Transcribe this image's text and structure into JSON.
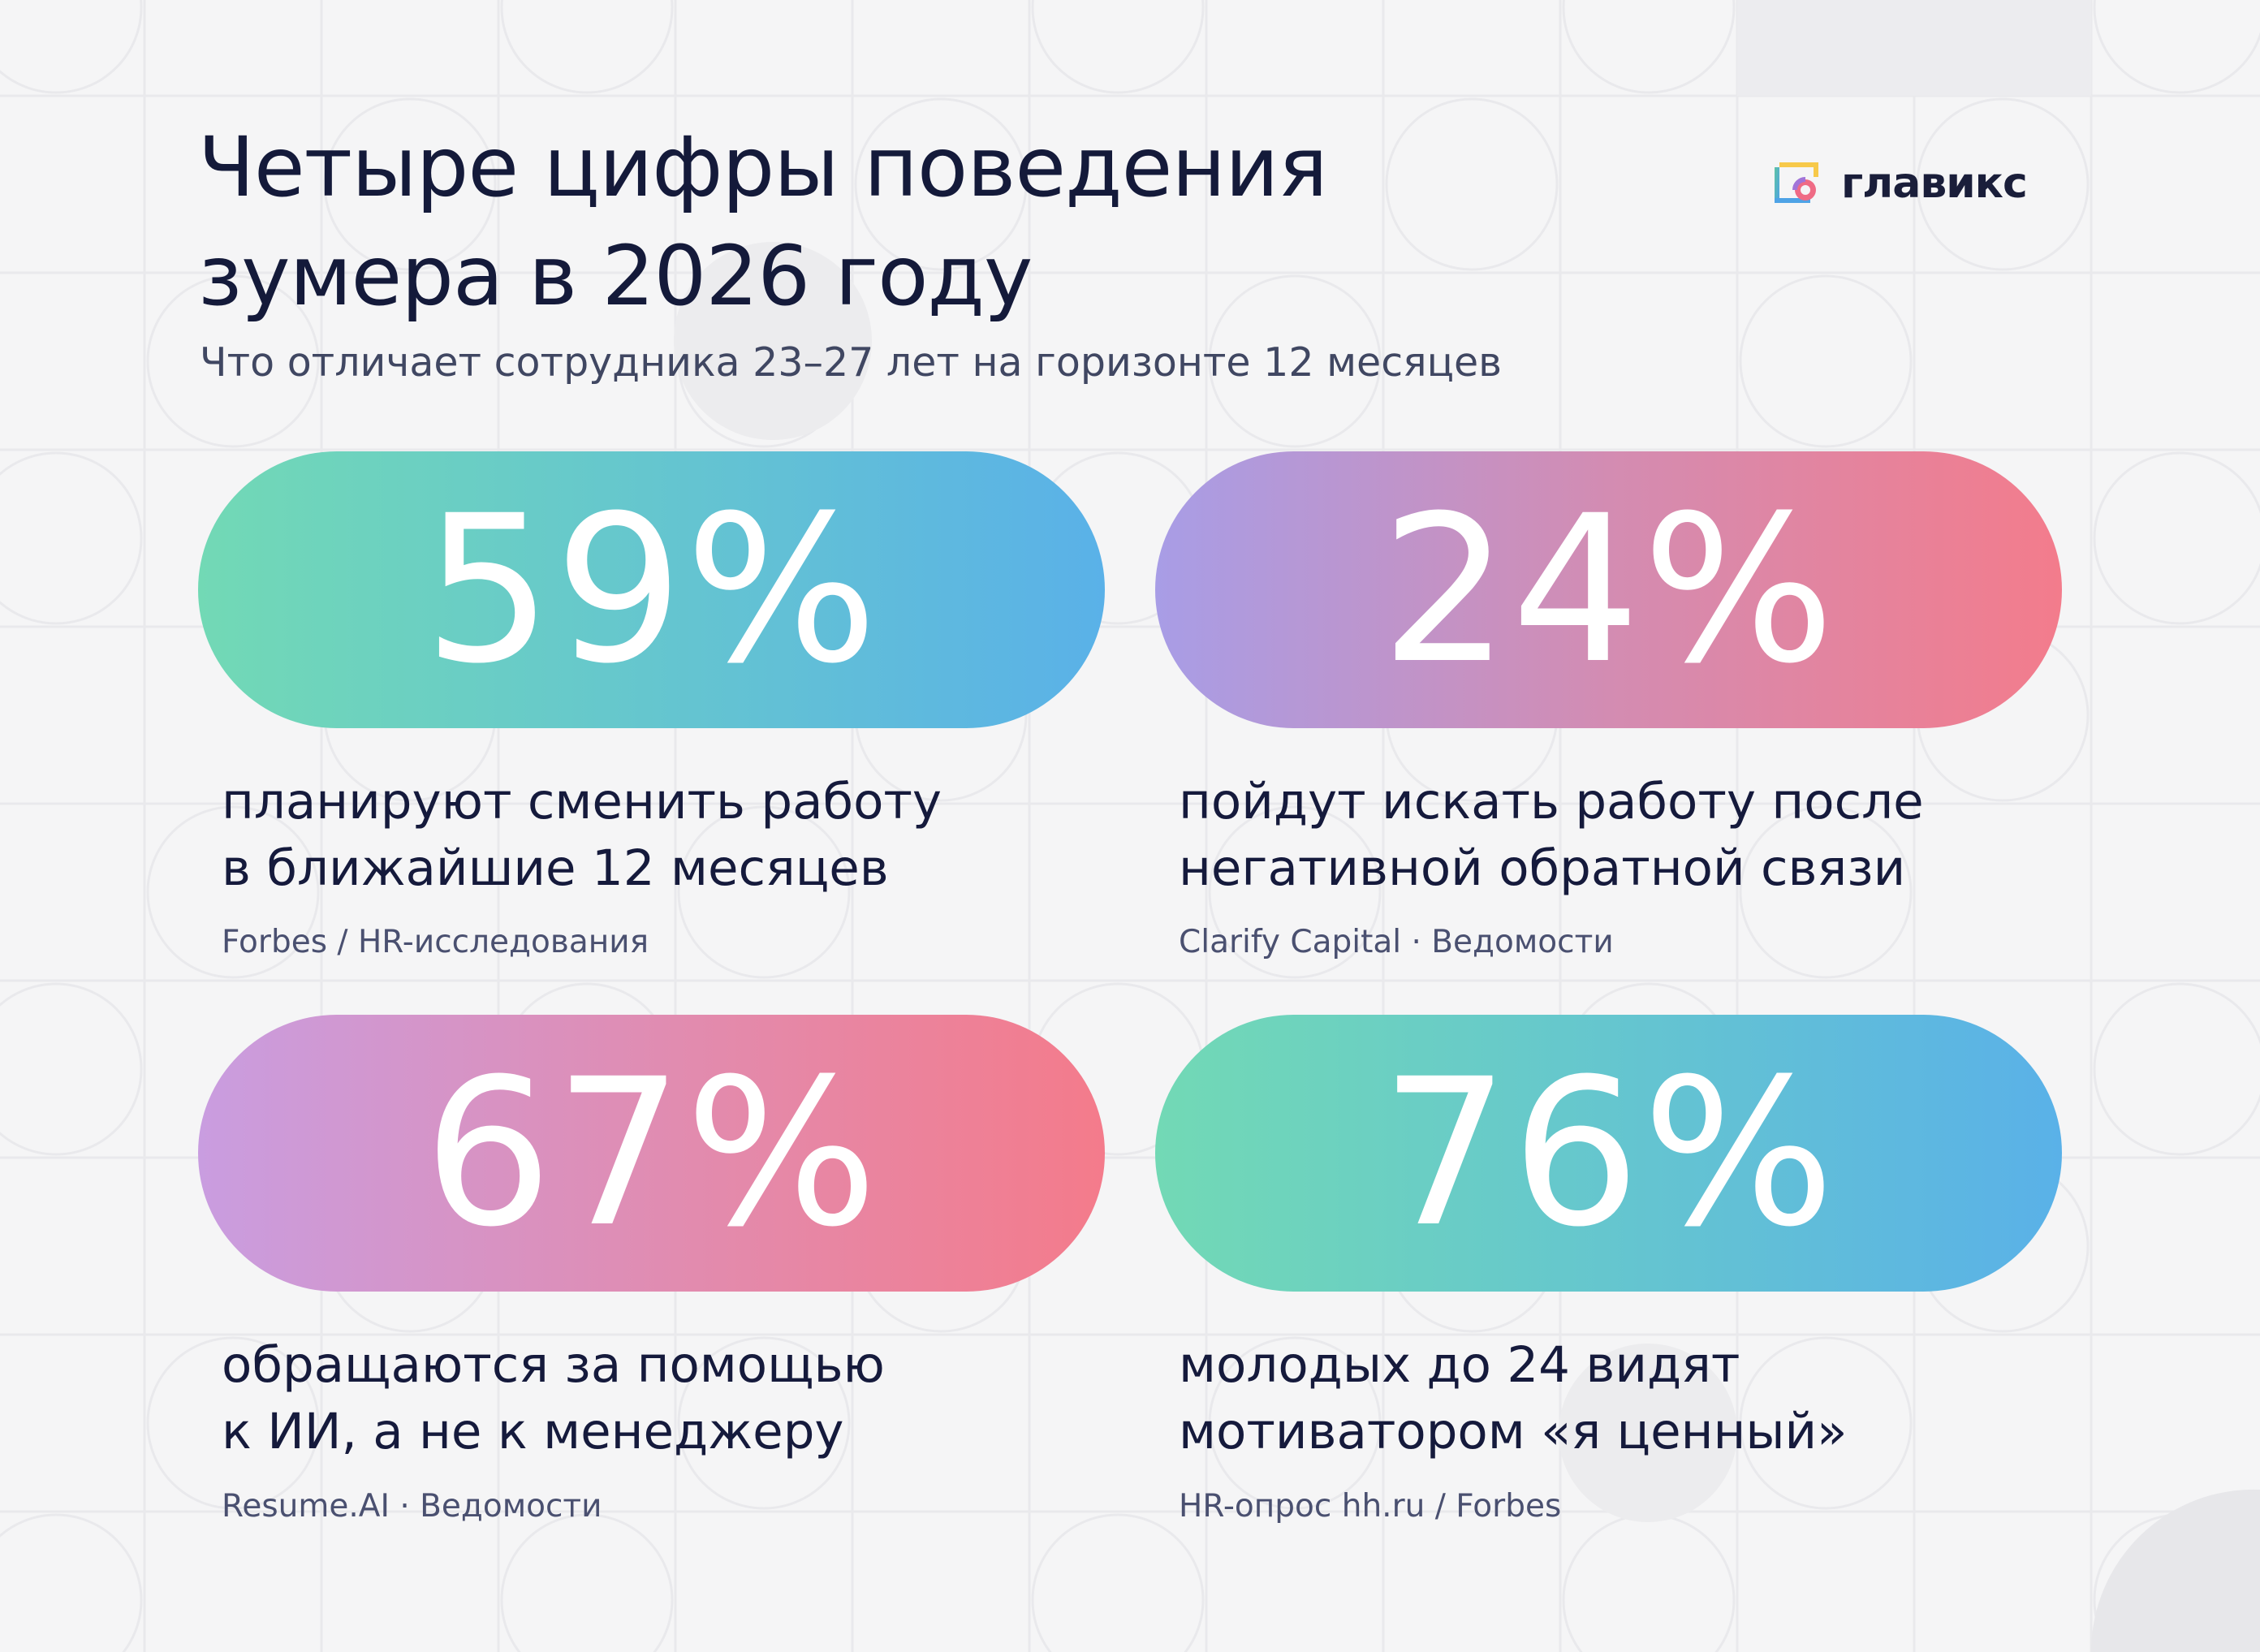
{
  "title": {
    "line1": "Четыре цифры поведения",
    "line2": "зумера в 2026 году"
  },
  "subtitle": "Что отличает сотрудника 23–27 лет на горизонте 12 месяцев",
  "logo": {
    "text": "главикс",
    "icon": "glavix-logo-icon",
    "colors": [
      "#f7c94a",
      "#5ec3a4",
      "#4ea3e6",
      "#a174d8",
      "#ef6b85"
    ]
  },
  "stats": [
    {
      "value": "59%",
      "desc_line1": "планируют сменить работу",
      "desc_line2": "в ближайшие 12 месяцев",
      "source": "Forbes / HR-исследования",
      "gradient": [
        "#72d9b5",
        "#5ab1e8"
      ]
    },
    {
      "value": "24%",
      "desc_line1": "пойдут искать работу после",
      "desc_line2": "негативной обратной связи",
      "source": "Clarify Capital · Ведомости",
      "gradient": [
        "#a89de6",
        "#f37c8c"
      ]
    },
    {
      "value": "67%",
      "desc_line1": "обращаются за помощью",
      "desc_line2": "к ИИ, а не к менеджеру",
      "source": "Resume.AI · Ведомости",
      "gradient": [
        "#c99de0",
        "#f47b8b"
      ]
    },
    {
      "value": "76%",
      "desc_line1": "молодых до 24 видят",
      "desc_line2": "мотиватором «я ценный»",
      "source": "HR-опрос hh.ru / Forbes",
      "gradient": [
        "#72d9b5",
        "#5ab1e8"
      ]
    }
  ]
}
